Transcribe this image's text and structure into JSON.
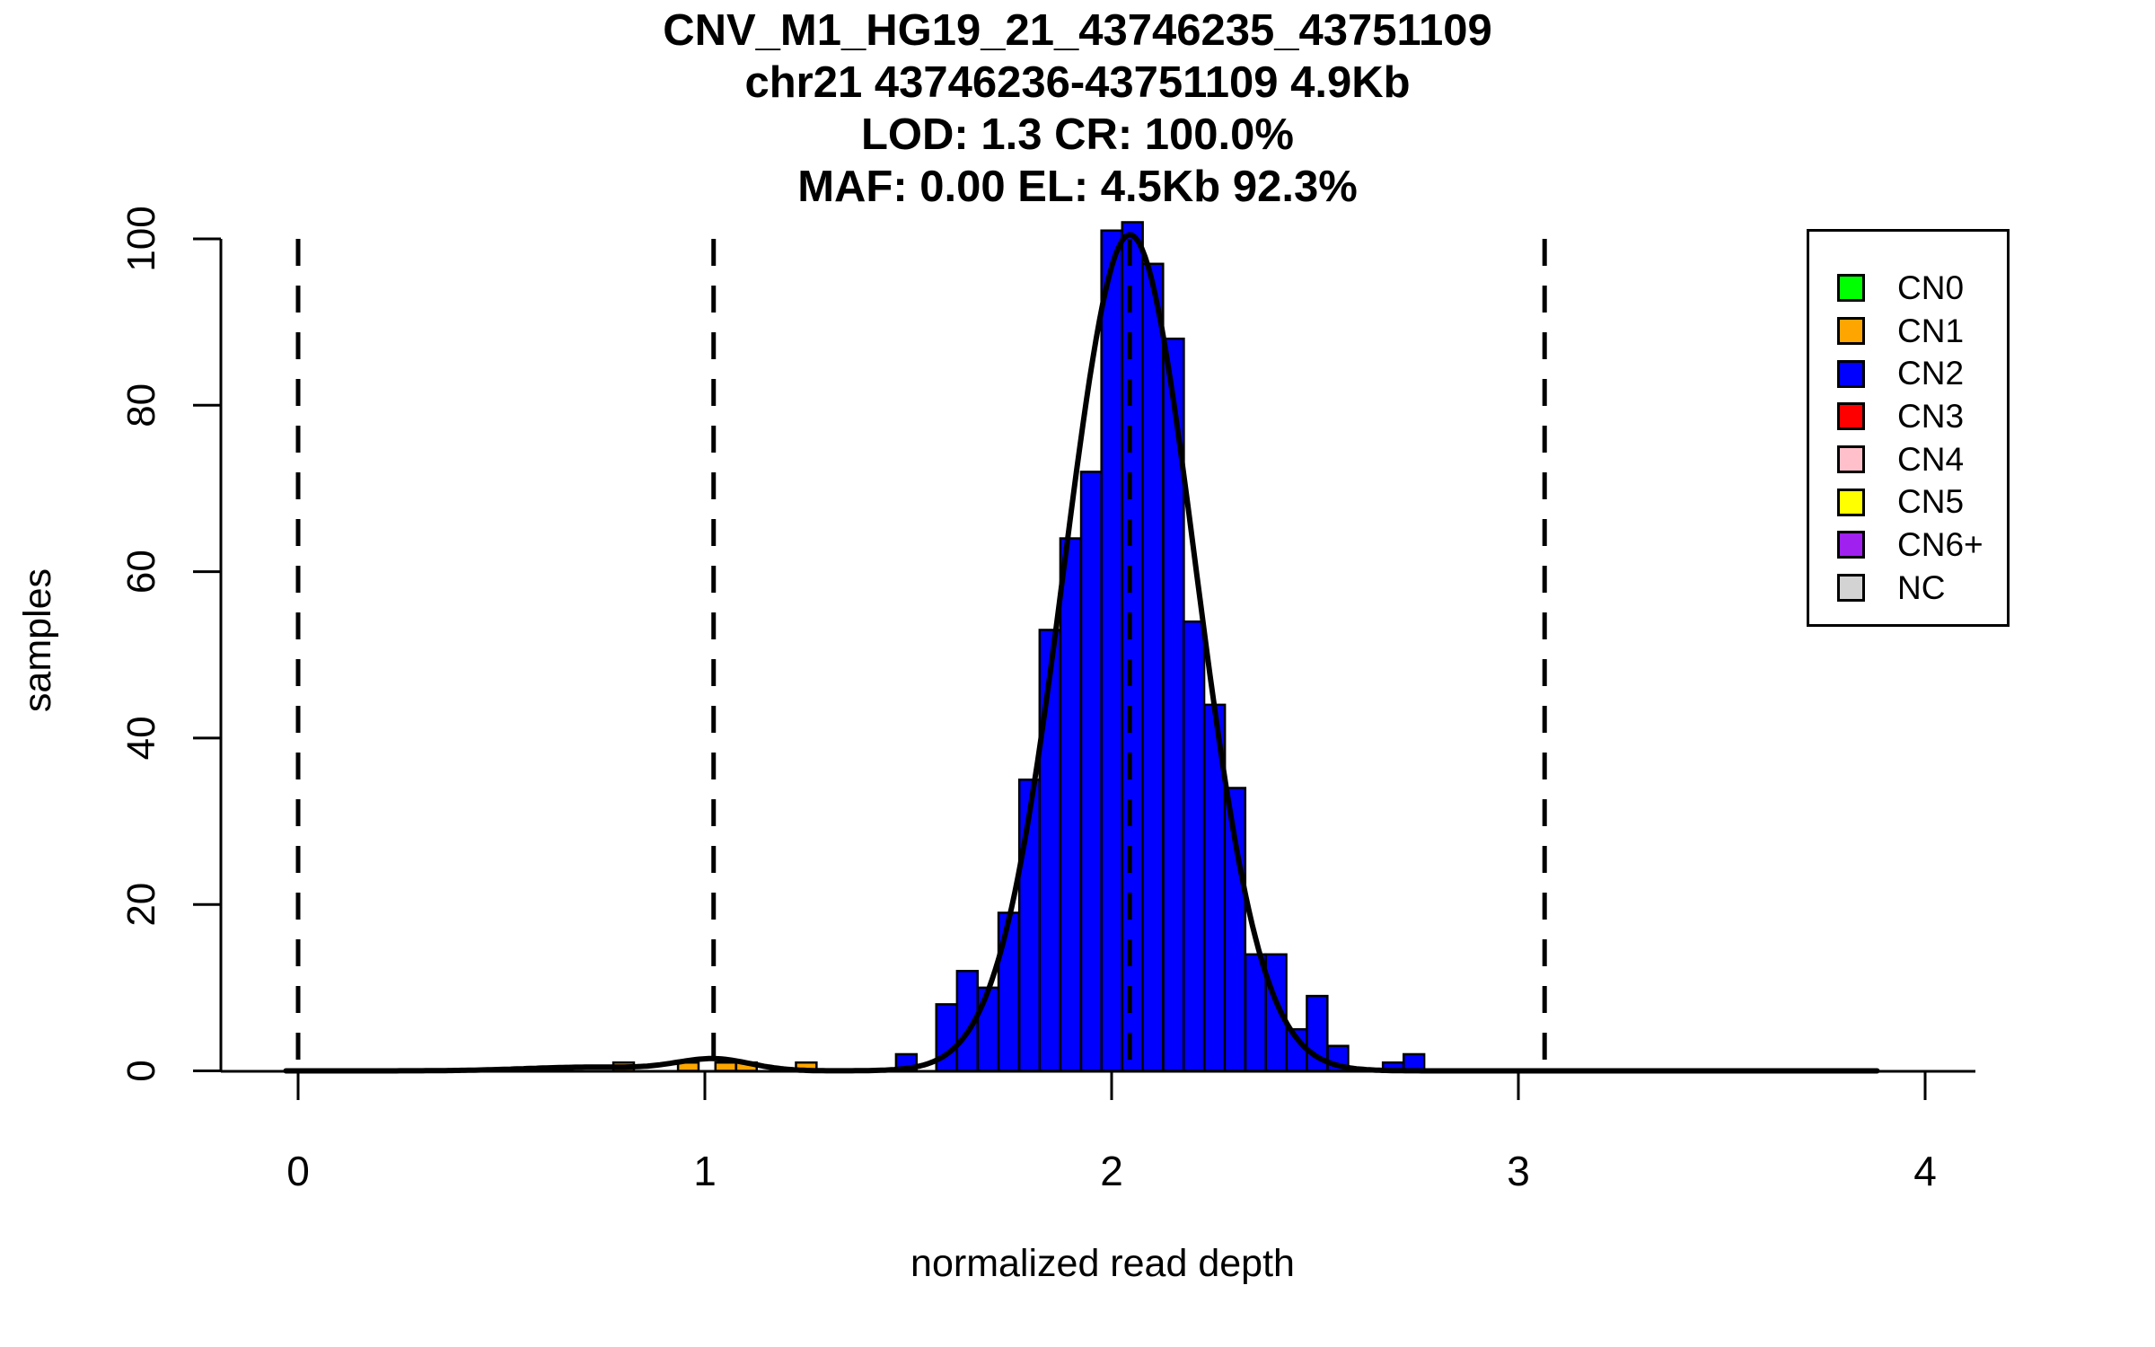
{
  "chart_data": {
    "type": "bar",
    "title_lines": [
      "CNV_M1_HG19_21_43746235_43751109",
      "chr21 43746236-43751109 4.9Kb",
      "LOD: 1.3 CR: 100.0%",
      "MAF: 0.00 EL: 4.5Kb 92.3%"
    ],
    "xlabel": "normalized read depth",
    "ylabel": "samples",
    "x_ticks": [
      0,
      1,
      2,
      3,
      4
    ],
    "y_ticks": [
      0,
      20,
      40,
      60,
      80,
      100
    ],
    "xlim": [
      -0.37,
      4.15
    ],
    "ylim": [
      0,
      100
    ],
    "grid": "off",
    "legend_position": "top-right",
    "bin_width": 0.0505,
    "series": [
      {
        "name": "CN2",
        "color": "#0000FF",
        "bins": [
          [
            1.47,
            2
          ],
          [
            1.569,
            8
          ],
          [
            1.62,
            12
          ],
          [
            1.671,
            10
          ],
          [
            1.722,
            19
          ],
          [
            1.773,
            35
          ],
          [
            1.823,
            53
          ],
          [
            1.874,
            64
          ],
          [
            1.925,
            72
          ],
          [
            1.975,
            101
          ],
          [
            2.026,
            102
          ],
          [
            2.076,
            97
          ],
          [
            2.127,
            88
          ],
          [
            2.177,
            54
          ],
          [
            2.228,
            44
          ],
          [
            2.278,
            34
          ],
          [
            2.329,
            14
          ],
          [
            2.379,
            14
          ],
          [
            2.43,
            5
          ],
          [
            2.48,
            9
          ],
          [
            2.531,
            3
          ],
          [
            2.667,
            1
          ],
          [
            2.718,
            2
          ]
        ]
      },
      {
        "name": "CN1",
        "color": "#FFA500",
        "bins": [
          [
            0.775,
            1
          ],
          [
            0.934,
            1
          ],
          [
            1.026,
            1
          ],
          [
            1.077,
            1
          ],
          [
            1.224,
            1
          ]
        ]
      }
    ],
    "fit_curve": {
      "color": "#000000",
      "x_range": [
        -0.03,
        3.89
      ],
      "components": [
        {
          "mu": 2.045,
          "sigma": 0.161,
          "amp": 100.5
        },
        {
          "mu": 1.022,
          "sigma": 0.09,
          "amp": 1.4
        },
        {
          "mu": 0.72,
          "sigma": 0.16,
          "amp": 0.45
        }
      ]
    },
    "dashed_guides": [
      0.0,
      1.0215,
      2.0445,
      3.0645
    ],
    "legend": {
      "items": [
        {
          "label": "CN0",
          "color": "#00FF00"
        },
        {
          "label": "CN1",
          "color": "#FFA500"
        },
        {
          "label": "CN2",
          "color": "#0000FF"
        },
        {
          "label": "CN3",
          "color": "#FF0000"
        },
        {
          "label": "CN4",
          "color": "#FFC0CB"
        },
        {
          "label": "CN5",
          "color": "#FFFF00"
        },
        {
          "label": "CN6+",
          "color": "#A020F0"
        },
        {
          "label": "NC",
          "color": "#D3D3D3"
        }
      ]
    }
  }
}
